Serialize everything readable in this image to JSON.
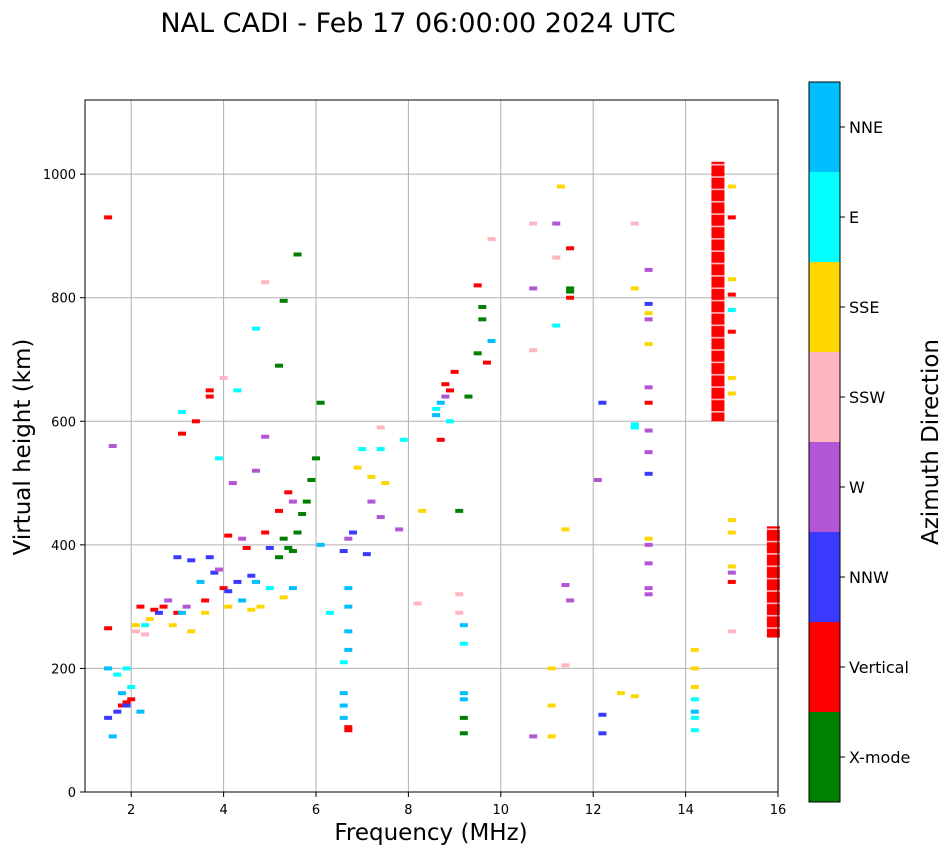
{
  "chart_data": {
    "type": "scatter",
    "title": "NAL CADI - Feb 17 06:00:00 2024 UTC",
    "xlabel": "Frequency (MHz)",
    "ylabel": "Virtual height (km)",
    "xlim": [
      1,
      16
    ],
    "ylim": [
      0,
      1120
    ],
    "xticks": [
      2,
      4,
      6,
      8,
      10,
      12,
      14,
      16
    ],
    "yticks": [
      0,
      200,
      400,
      600,
      800,
      1000
    ],
    "grid": true,
    "colorbar": {
      "label": "Azimuth Direction",
      "categories": [
        {
          "name": "X-mode",
          "color": "#008000"
        },
        {
          "name": "Vertical",
          "color": "#ff0000"
        },
        {
          "name": "NNW",
          "color": "#3a3aff"
        },
        {
          "name": "W",
          "color": "#b256d6"
        },
        {
          "name": "SSW",
          "color": "#ffb6c1"
        },
        {
          "name": "SSE",
          "color": "#ffd700"
        },
        {
          "name": "E",
          "color": "#00ffff"
        },
        {
          "name": "NNE",
          "color": "#00bfff"
        }
      ]
    },
    "series": [
      {
        "name": "Vertical",
        "points": [
          [
            1.5,
            930
          ],
          [
            1.5,
            265
          ],
          [
            1.8,
            140
          ],
          [
            1.9,
            145
          ],
          [
            2.0,
            150
          ],
          [
            2.2,
            300
          ],
          [
            2.5,
            295
          ],
          [
            2.7,
            300
          ],
          [
            3.0,
            290
          ],
          [
            3.1,
            580
          ],
          [
            3.4,
            600
          ],
          [
            3.6,
            310
          ],
          [
            3.7,
            640
          ],
          [
            3.7,
            650
          ],
          [
            4.0,
            330
          ],
          [
            4.1,
            415
          ],
          [
            4.5,
            395
          ],
          [
            4.9,
            420
          ],
          [
            5.2,
            455
          ],
          [
            5.4,
            485
          ],
          [
            6.7,
            105
          ],
          [
            6.7,
            100
          ],
          [
            8.7,
            570
          ],
          [
            8.8,
            660
          ],
          [
            8.9,
            650
          ],
          [
            9.0,
            680
          ],
          [
            9.5,
            820
          ],
          [
            9.7,
            695
          ],
          [
            11.5,
            880
          ],
          [
            11.5,
            800
          ],
          [
            13.2,
            630
          ],
          [
            15.0,
            930
          ],
          [
            15.0,
            805
          ],
          [
            15.0,
            745
          ],
          [
            15.0,
            340
          ]
        ]
      },
      {
        "name": "Vertical-band",
        "points": [
          [
            14.7,
            600
          ],
          [
            14.7,
            1020
          ],
          [
            15.9,
            250
          ],
          [
            15.9,
            430
          ]
        ]
      },
      {
        "name": "X-mode",
        "points": [
          [
            5.2,
            380
          ],
          [
            5.3,
            410
          ],
          [
            5.4,
            395
          ],
          [
            5.5,
            390
          ],
          [
            5.6,
            420
          ],
          [
            5.7,
            450
          ],
          [
            5.8,
            470
          ],
          [
            5.9,
            505
          ],
          [
            6.0,
            540
          ],
          [
            6.1,
            630
          ],
          [
            5.6,
            870
          ],
          [
            5.2,
            690
          ],
          [
            5.3,
            795
          ],
          [
            9.6,
            785
          ],
          [
            9.6,
            765
          ],
          [
            9.5,
            710
          ],
          [
            9.3,
            640
          ],
          [
            9.1,
            455
          ],
          [
            9.2,
            120
          ],
          [
            9.2,
            95
          ],
          [
            11.5,
            815
          ],
          [
            11.5,
            810
          ]
        ]
      },
      {
        "name": "NNW",
        "points": [
          [
            1.5,
            120
          ],
          [
            1.7,
            130
          ],
          [
            1.9,
            140
          ],
          [
            2.6,
            290
          ],
          [
            3.0,
            380
          ],
          [
            3.3,
            375
          ],
          [
            3.7,
            380
          ],
          [
            3.8,
            355
          ],
          [
            4.1,
            325
          ],
          [
            4.3,
            340
          ],
          [
            4.6,
            350
          ],
          [
            5.0,
            395
          ],
          [
            6.6,
            390
          ],
          [
            6.8,
            420
          ],
          [
            7.1,
            385
          ],
          [
            12.2,
            630
          ],
          [
            12.2,
            125
          ],
          [
            12.2,
            95
          ],
          [
            13.2,
            515
          ],
          [
            13.2,
            790
          ]
        ]
      },
      {
        "name": "W",
        "points": [
          [
            1.6,
            560
          ],
          [
            2.8,
            310
          ],
          [
            3.2,
            300
          ],
          [
            3.9,
            360
          ],
          [
            4.2,
            500
          ],
          [
            4.4,
            410
          ],
          [
            4.7,
            520
          ],
          [
            4.9,
            575
          ],
          [
            5.5,
            470
          ],
          [
            6.7,
            410
          ],
          [
            7.2,
            470
          ],
          [
            7.4,
            445
          ],
          [
            7.8,
            425
          ],
          [
            8.8,
            640
          ],
          [
            10.7,
            815
          ],
          [
            10.7,
            90
          ],
          [
            11.2,
            920
          ],
          [
            11.4,
            335
          ],
          [
            11.5,
            310
          ],
          [
            12.1,
            505
          ],
          [
            13.2,
            845
          ],
          [
            13.2,
            765
          ],
          [
            13.2,
            655
          ],
          [
            13.2,
            585
          ],
          [
            13.2,
            550
          ],
          [
            13.2,
            400
          ],
          [
            13.2,
            370
          ],
          [
            13.2,
            330
          ],
          [
            13.2,
            320
          ],
          [
            15.0,
            355
          ]
        ]
      },
      {
        "name": "SSW",
        "points": [
          [
            2.1,
            260
          ],
          [
            2.3,
            255
          ],
          [
            4.0,
            670
          ],
          [
            4.9,
            825
          ],
          [
            8.2,
            305
          ],
          [
            9.1,
            290
          ],
          [
            9.1,
            320
          ],
          [
            10.7,
            920
          ],
          [
            10.7,
            715
          ],
          [
            11.2,
            865
          ],
          [
            11.4,
            205
          ],
          [
            12.9,
            920
          ],
          [
            15.0,
            260
          ],
          [
            9.8,
            895
          ],
          [
            7.4,
            590
          ]
        ]
      },
      {
        "name": "SSE",
        "points": [
          [
            2.1,
            270
          ],
          [
            2.4,
            280
          ],
          [
            2.9,
            270
          ],
          [
            3.3,
            260
          ],
          [
            3.6,
            290
          ],
          [
            4.1,
            300
          ],
          [
            4.6,
            295
          ],
          [
            4.8,
            300
          ],
          [
            5.3,
            315
          ],
          [
            6.9,
            525
          ],
          [
            7.2,
            510
          ],
          [
            7.5,
            500
          ],
          [
            8.3,
            455
          ],
          [
            11.1,
            200
          ],
          [
            11.1,
            140
          ],
          [
            11.1,
            90
          ],
          [
            11.3,
            980
          ],
          [
            11.4,
            425
          ],
          [
            12.6,
            160
          ],
          [
            12.9,
            155
          ],
          [
            12.9,
            815
          ],
          [
            13.2,
            775
          ],
          [
            13.2,
            725
          ],
          [
            13.2,
            410
          ],
          [
            14.2,
            230
          ],
          [
            14.2,
            200
          ],
          [
            14.2,
            170
          ],
          [
            15.0,
            980
          ],
          [
            15.0,
            830
          ],
          [
            15.0,
            670
          ],
          [
            15.0,
            645
          ],
          [
            15.0,
            440
          ],
          [
            15.0,
            365
          ],
          [
            15.0,
            420
          ]
        ]
      },
      {
        "name": "E",
        "points": [
          [
            1.7,
            190
          ],
          [
            1.9,
            200
          ],
          [
            2.0,
            170
          ],
          [
            2.3,
            270
          ],
          [
            3.1,
            615
          ],
          [
            3.9,
            540
          ],
          [
            4.3,
            650
          ],
          [
            4.7,
            750
          ],
          [
            5.0,
            330
          ],
          [
            6.3,
            290
          ],
          [
            6.6,
            210
          ],
          [
            7.0,
            555
          ],
          [
            7.4,
            555
          ],
          [
            7.9,
            570
          ],
          [
            8.6,
            620
          ],
          [
            8.9,
            600
          ],
          [
            9.2,
            240
          ],
          [
            11.2,
            755
          ],
          [
            12.9,
            595
          ],
          [
            12.9,
            590
          ],
          [
            14.2,
            150
          ],
          [
            14.2,
            120
          ],
          [
            14.2,
            100
          ],
          [
            15.0,
            780
          ]
        ]
      },
      {
        "name": "NNE",
        "points": [
          [
            1.5,
            200
          ],
          [
            1.6,
            90
          ],
          [
            1.8,
            160
          ],
          [
            2.2,
            130
          ],
          [
            3.1,
            290
          ],
          [
            3.5,
            340
          ],
          [
            4.4,
            310
          ],
          [
            4.7,
            340
          ],
          [
            5.5,
            330
          ],
          [
            6.1,
            400
          ],
          [
            6.6,
            160
          ],
          [
            6.6,
            140
          ],
          [
            6.6,
            120
          ],
          [
            6.7,
            230
          ],
          [
            6.7,
            260
          ],
          [
            6.7,
            300
          ],
          [
            6.7,
            330
          ],
          [
            8.6,
            610
          ],
          [
            8.7,
            630
          ],
          [
            9.2,
            270
          ],
          [
            9.2,
            160
          ],
          [
            9.2,
            150
          ],
          [
            9.8,
            730
          ],
          [
            14.2,
            130
          ]
        ]
      }
    ]
  }
}
